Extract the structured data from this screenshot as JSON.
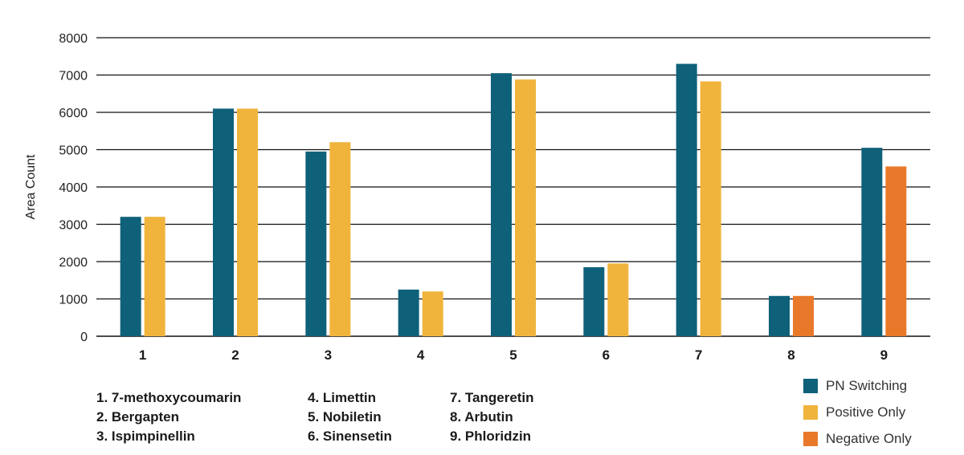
{
  "chart_data": {
    "type": "bar",
    "ylabel": "Area Count",
    "xlabel": "",
    "ylim": [
      0,
      8000
    ],
    "yticks": [
      0,
      1000,
      2000,
      3000,
      4000,
      5000,
      6000,
      7000,
      8000
    ],
    "grid": true,
    "categories": [
      "1",
      "2",
      "3",
      "4",
      "5",
      "6",
      "7",
      "8",
      "9"
    ],
    "series": [
      {
        "name": "PN Switching",
        "color": "#0f6179",
        "values": [
          3200,
          6100,
          4950,
          1250,
          7050,
          1850,
          7300,
          1080,
          5050
        ]
      },
      {
        "name": "Positive Only",
        "color": "#f0b43c",
        "values": [
          3200,
          6100,
          5200,
          1200,
          6880,
          1950,
          6830,
          null,
          null
        ]
      },
      {
        "name": "Negative Only",
        "color": "#e8792a",
        "values": [
          null,
          null,
          null,
          null,
          null,
          null,
          null,
          1080,
          4550
        ]
      }
    ],
    "legend_position": "bottom-right"
  },
  "compound_legend": [
    [
      "1. 7-methoxycoumarin",
      "2. Bergapten",
      "3. Ispimpinellin"
    ],
    [
      "4. Limettin",
      "5. Nobiletin",
      "6. Sinensetin"
    ],
    [
      "7. Tangeretin",
      "8. Arbutin",
      "9. Phloridzin"
    ]
  ]
}
